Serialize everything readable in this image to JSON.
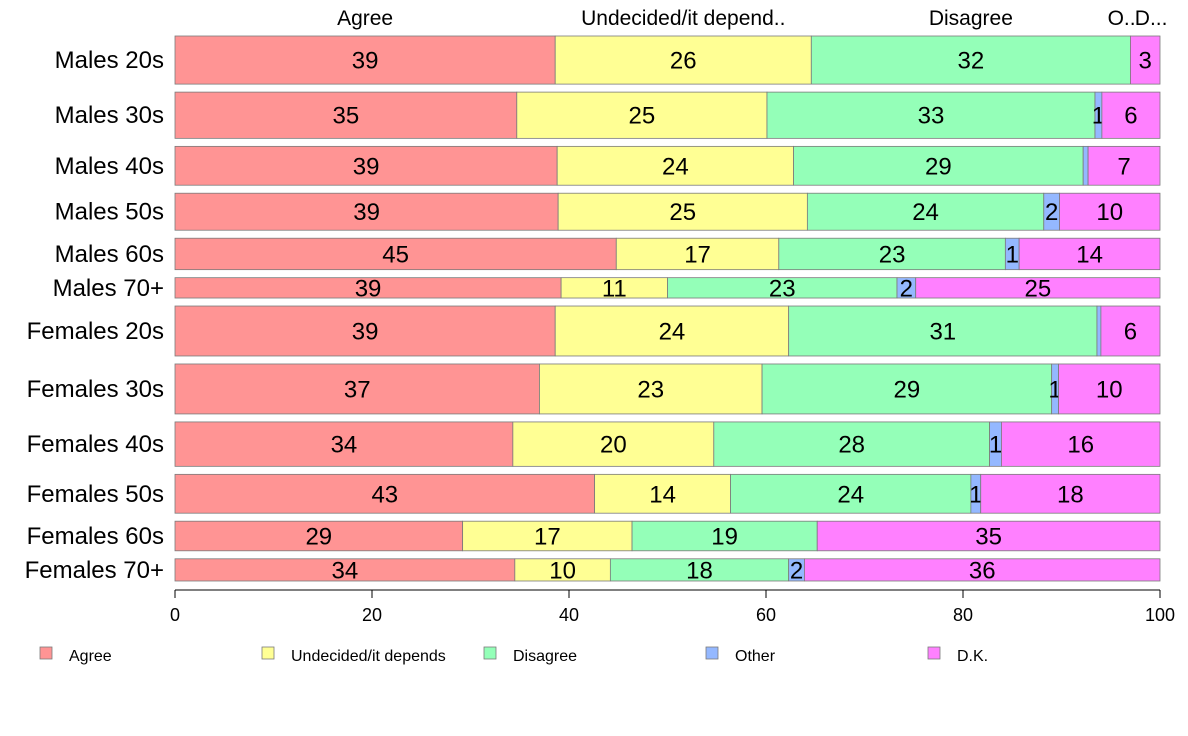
{
  "chart_data": {
    "type": "bar",
    "orientation": "horizontal",
    "stacked": true,
    "percent": true,
    "categories": [
      "Males 20s",
      "Males 30s",
      "Males 40s",
      "Males 50s",
      "Males 60s",
      "Males 70+",
      "Females 20s",
      "Females 30s",
      "Females 40s",
      "Females 50s",
      "Females 60s",
      "Females 70+"
    ],
    "series": [
      {
        "name": "Agree",
        "color": "#ff9494",
        "values": [
          39,
          35,
          39,
          39,
          45,
          39,
          39,
          37,
          34,
          43,
          29,
          34
        ]
      },
      {
        "name": "Undecided/it depends",
        "color": "#ffff94",
        "values": [
          26,
          25,
          24,
          25,
          17,
          11,
          24,
          23,
          20,
          14,
          17,
          10
        ]
      },
      {
        "name": "Disagree",
        "color": "#94ffb8",
        "values": [
          32,
          33,
          29,
          24,
          23,
          23,
          31,
          29,
          28,
          24,
          19,
          18
        ]
      },
      {
        "name": "Other",
        "color": "#94b8ff",
        "values": [
          0,
          1,
          0,
          2,
          1,
          2,
          0,
          1,
          1,
          1,
          0,
          2
        ]
      },
      {
        "name": "D.K.",
        "color": "#ff80ff",
        "values": [
          3,
          6,
          7,
          10,
          14,
          25,
          6,
          10,
          16,
          18,
          35,
          36
        ]
      }
    ],
    "exact_shares": [
      [
        38.6,
        26.0,
        32.4,
        0.0,
        3.0
      ],
      [
        34.7,
        25.4,
        33.3,
        0.7,
        5.9
      ],
      [
        38.8,
        24.0,
        29.4,
        0.5,
        7.3
      ],
      [
        38.9,
        25.3,
        24.0,
        1.6,
        10.2
      ],
      [
        44.8,
        16.5,
        23.0,
        1.4,
        14.3
      ],
      [
        39.2,
        10.8,
        23.3,
        1.9,
        24.8
      ],
      [
        38.6,
        23.7,
        31.3,
        0.4,
        6.0
      ],
      [
        37.0,
        22.6,
        29.4,
        0.7,
        10.3
      ],
      [
        34.3,
        20.4,
        28.0,
        1.2,
        16.1
      ],
      [
        42.6,
        13.8,
        24.4,
        1.0,
        18.2
      ],
      [
        29.2,
        17.2,
        18.8,
        0.0,
        34.8
      ],
      [
        34.5,
        9.7,
        18.1,
        1.6,
        36.1
      ]
    ],
    "row_weights": [
      1.3,
      1.25,
      1.05,
      1.0,
      0.85,
      0.55,
      1.35,
      1.35,
      1.2,
      1.05,
      0.8,
      0.6
    ],
    "top_labels": [
      "Agree",
      "Undecided/it depend..",
      "Disagree",
      "O..",
      "D..."
    ],
    "xlim": [
      0,
      100
    ],
    "xticks": [
      "0",
      "20",
      "40",
      "60",
      "80",
      "100"
    ],
    "legend": {
      "position": "bottom",
      "items": [
        "Agree",
        "Undecided/it depends",
        "Disagree",
        "Other",
        "D.K."
      ]
    },
    "grid": false
  }
}
